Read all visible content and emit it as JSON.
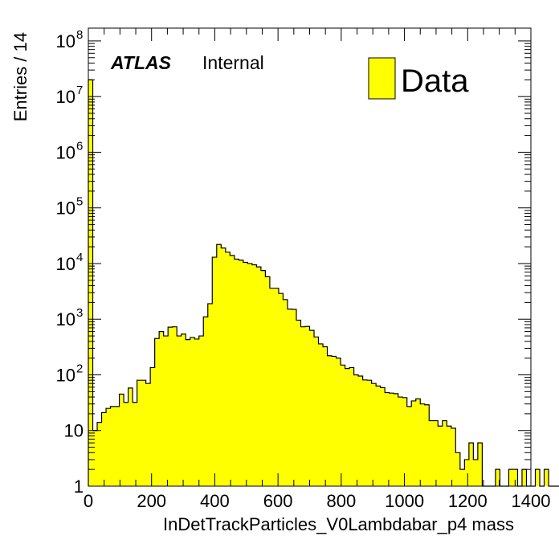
{
  "chart_data": {
    "type": "bar",
    "xlabel": "InDetTrackParticles_V0Lambdabar_p4 mass",
    "ylabel": "Entries / 14",
    "xlim": [
      0,
      1400
    ],
    "ylim": [
      1,
      100000000
    ],
    "yscale": "log",
    "bin_width": 14,
    "x_ticks": [
      "0",
      "200",
      "400",
      "600",
      "800",
      "1000",
      "1200",
      "1400"
    ],
    "y_ticks": [
      {
        "base": "10",
        "exp": "8"
      },
      {
        "base": "10",
        "exp": "7"
      },
      {
        "base": "10",
        "exp": "6"
      },
      {
        "base": "10",
        "exp": "5"
      },
      {
        "base": "10",
        "exp": "4"
      },
      {
        "base": "10",
        "exp": "3"
      },
      {
        "base": "10",
        "exp": "2"
      },
      {
        "base": "10",
        "exp": ""
      },
      {
        "base": "1",
        "exp": ""
      }
    ],
    "y_tick_values": [
      100000000,
      10000000,
      1000000,
      100000,
      10000,
      1000,
      100,
      10,
      1
    ],
    "series": [
      {
        "name": "Data",
        "color": "#ffff00",
        "values": [
          20000000,
          10,
          14,
          21,
          25,
          27,
          27,
          45,
          32,
          58,
          32,
          80,
          80,
          70,
          135,
          450,
          600,
          500,
          720,
          730,
          500,
          540,
          430,
          470,
          440,
          500,
          1100,
          1900,
          13000,
          22000,
          19000,
          16000,
          14000,
          12000,
          11500,
          10500,
          10000,
          9500,
          8700,
          7500,
          5800,
          3600,
          3600,
          2900,
          2250,
          1520,
          1500,
          960,
          730,
          740,
          630,
          480,
          360,
          320,
          220,
          215,
          200,
          150,
          130,
          135,
          100,
          95,
          81,
          80,
          70,
          63,
          59,
          48,
          47,
          46,
          40,
          39,
          27,
          34,
          37,
          30,
          29,
          15,
          15,
          12,
          15,
          12,
          11,
          4,
          2,
          3,
          6,
          3,
          6,
          1,
          0,
          1,
          2,
          0,
          0,
          2,
          2,
          0,
          2,
          0,
          1,
          2,
          0,
          2,
          0,
          0,
          0,
          0,
          0,
          0
        ]
      }
    ],
    "legend": {
      "entries": [
        "Data"
      ],
      "position": "top-right"
    },
    "annotations": {
      "atlas": "ATLAS",
      "status": "Internal"
    }
  }
}
